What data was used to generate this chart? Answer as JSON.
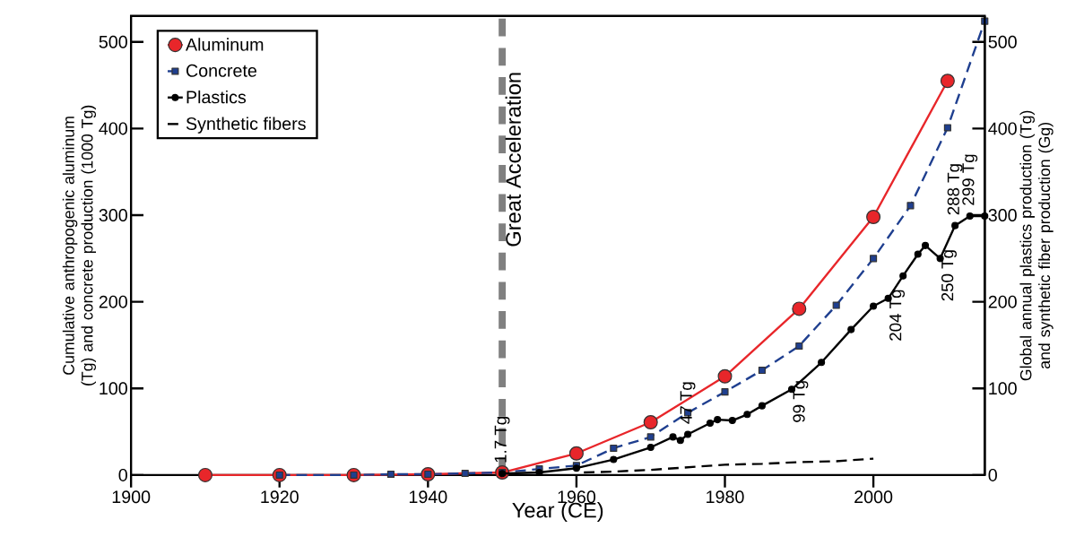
{
  "chart_data": {
    "type": "line",
    "xlabel": "Year (CE)",
    "ylabel": "Cumulative anthropogenic aluminum (Tg) and concrete production (1000 Tg)",
    "y2label": "Global annual plastics production (Tg) and synthetic fiber production (Gg)",
    "xlim": [
      1900,
      2015
    ],
    "xticks": [
      1900,
      1920,
      1940,
      1960,
      1980,
      2000
    ],
    "ylim": [
      0,
      530
    ],
    "yticks": [
      0,
      100,
      200,
      300,
      400,
      500
    ],
    "y2lim": [
      0,
      530
    ],
    "y2ticks": [
      0,
      100,
      200,
      300,
      400,
      500
    ],
    "grid": false,
    "legend": "top left",
    "series": [
      {
        "name": "Aluminum",
        "color": "#e8262a",
        "marker": "circle",
        "line_style": "solid",
        "x": [
          1910,
          1920,
          1930,
          1940,
          1950,
          1960,
          1970,
          1980,
          1990,
          2000,
          2010
        ],
        "values": [
          0,
          0,
          0,
          1,
          3,
          25,
          61,
          114,
          192,
          298,
          455
        ]
      },
      {
        "name": "Concrete",
        "color": "#1f3f8f",
        "marker": "square",
        "line_style": "dashed",
        "x": [
          1920,
          1930,
          1935,
          1940,
          1945,
          1950,
          1955,
          1960,
          1965,
          1970,
          1975,
          1980,
          1985,
          1990,
          1995,
          2000,
          2005,
          2010,
          2015
        ],
        "values": [
          0,
          0,
          1,
          1,
          2,
          3,
          7,
          11,
          31,
          44,
          72,
          96,
          121,
          149,
          196,
          250,
          311,
          401,
          524
        ]
      },
      {
        "name": "Plastics",
        "color": "#000000",
        "marker": "circle",
        "line_style": "solid",
        "axis": "y2",
        "x": [
          1950,
          1955,
          1960,
          1965,
          1970,
          1973,
          1974,
          1975,
          1978,
          1979,
          1981,
          1983,
          1985,
          1989,
          1993,
          1997,
          2000,
          2002,
          2004,
          2006,
          2007,
          2009,
          2011,
          2013,
          2015
        ],
        "values": [
          1.7,
          3,
          8,
          18,
          32,
          44,
          40,
          47,
          60,
          64,
          63,
          70,
          80,
          99,
          130,
          168,
          195,
          204,
          230,
          255,
          265,
          250,
          288,
          299,
          299
        ],
        "value_labels": [
          "1.7 Tg",
          null,
          null,
          null,
          null,
          null,
          null,
          "47 Tg",
          null,
          null,
          null,
          null,
          null,
          "99 Tg",
          null,
          null,
          null,
          "204 Tg",
          null,
          null,
          null,
          "250 Tg",
          "288 Tg",
          "299 Tg",
          null
        ]
      },
      {
        "name": "Synthetic fibers",
        "color": "#000000",
        "marker": "none",
        "line_style": "dashed",
        "axis": "y2",
        "x": [
          1961,
          1965,
          1970,
          1975,
          1980,
          1985,
          1990,
          1995,
          2000
        ],
        "values": [
          3,
          4,
          6,
          9,
          12,
          13,
          15,
          16,
          19
        ]
      }
    ],
    "ref_lines": [
      {
        "axis": "x",
        "value": 1950,
        "label": "Great Acceleration",
        "color": "#808080",
        "line_style": "dashed"
      }
    ]
  }
}
